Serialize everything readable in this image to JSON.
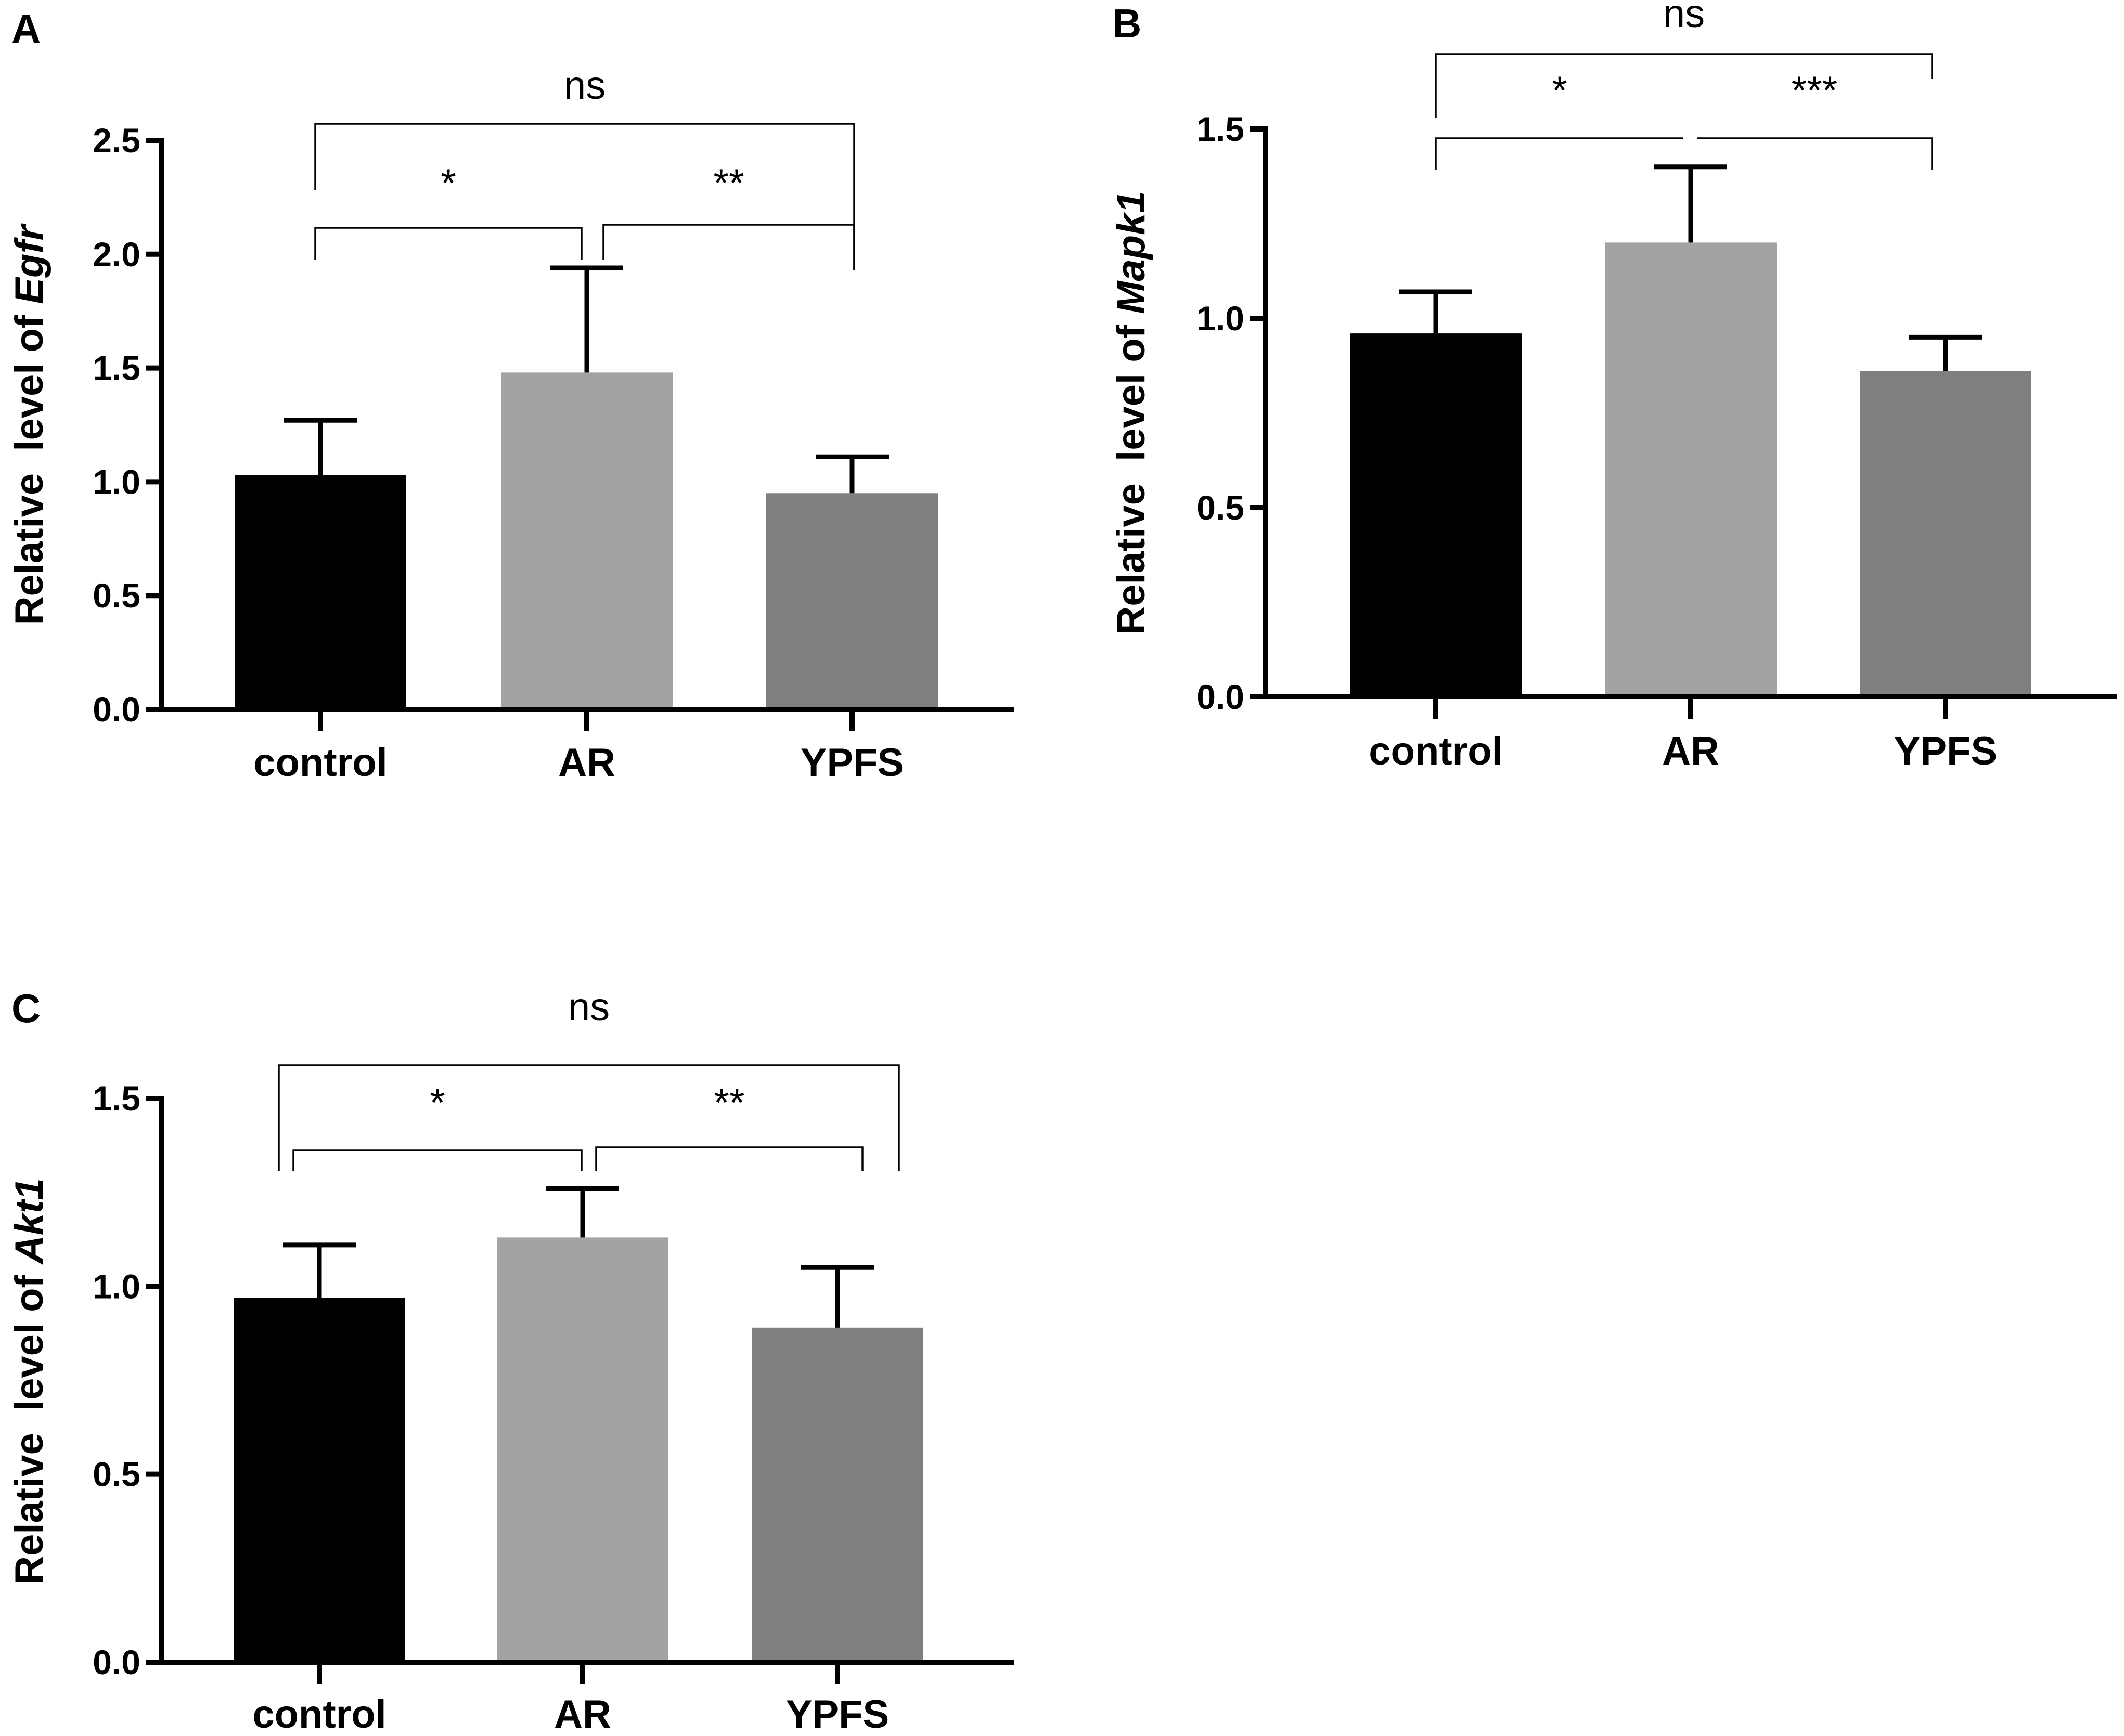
{
  "chart_data": [
    {
      "panel": "A",
      "type": "bar",
      "ylabel_prefix": "Relative  level of ",
      "gene": "Egfr",
      "categories": [
        "control",
        "AR",
        "YPFS"
      ],
      "values": [
        1.03,
        1.48,
        0.95
      ],
      "errors": [
        0.24,
        0.46,
        0.16
      ],
      "colors": [
        "#000000",
        "#a3a3a5",
        "#7f7f7f"
      ],
      "ylim": [
        0,
        2.5
      ],
      "yticks": [
        0.0,
        0.5,
        1.0,
        1.5,
        2.0,
        2.5
      ],
      "ytick_labels": [
        "0.0",
        "0.5",
        "1.0",
        "1.5",
        "2.0",
        "2.5"
      ],
      "significance": [
        {
          "from": 0,
          "to": 1,
          "label": "*"
        },
        {
          "from": 1,
          "to": 2,
          "label": "**"
        },
        {
          "from": 0,
          "to": 2,
          "label": "ns"
        }
      ]
    },
    {
      "panel": "B",
      "type": "bar",
      "ylabel_prefix": "Relative  level of ",
      "gene": "Mapk1",
      "categories": [
        "control",
        "AR",
        "YPFS"
      ],
      "values": [
        0.96,
        1.2,
        0.86
      ],
      "errors": [
        0.11,
        0.2,
        0.09
      ],
      "colors": [
        "#000000",
        "#a3a3a5",
        "#7f7f7f"
      ],
      "ylim": [
        0,
        1.5
      ],
      "yticks": [
        0.0,
        0.5,
        1.0,
        1.5
      ],
      "ytick_labels": [
        "0.0",
        "0.5",
        "1.0",
        "1.5"
      ],
      "significance": [
        {
          "from": 0,
          "to": 1,
          "label": "*"
        },
        {
          "from": 1,
          "to": 2,
          "label": "***"
        },
        {
          "from": 0,
          "to": 2,
          "label": "ns"
        }
      ]
    },
    {
      "panel": "C",
      "type": "bar",
      "ylabel_prefix": "Relative  level of ",
      "gene": "Akt1",
      "categories": [
        "control",
        "AR",
        "YPFS"
      ],
      "values": [
        0.97,
        1.13,
        0.89
      ],
      "errors": [
        0.14,
        0.13,
        0.16
      ],
      "colors": [
        "#000000",
        "#a3a3a5",
        "#7f7f7f"
      ],
      "ylim": [
        0,
        1.5
      ],
      "yticks": [
        0.0,
        0.5,
        1.0,
        1.5
      ],
      "ytick_labels": [
        "0.0",
        "0.5",
        "1.0",
        "1.5"
      ],
      "significance": [
        {
          "from": 0,
          "to": 1,
          "label": "*"
        },
        {
          "from": 1,
          "to": 2,
          "label": "**"
        },
        {
          "from": 0,
          "to": 2,
          "label": "ns"
        }
      ]
    }
  ]
}
